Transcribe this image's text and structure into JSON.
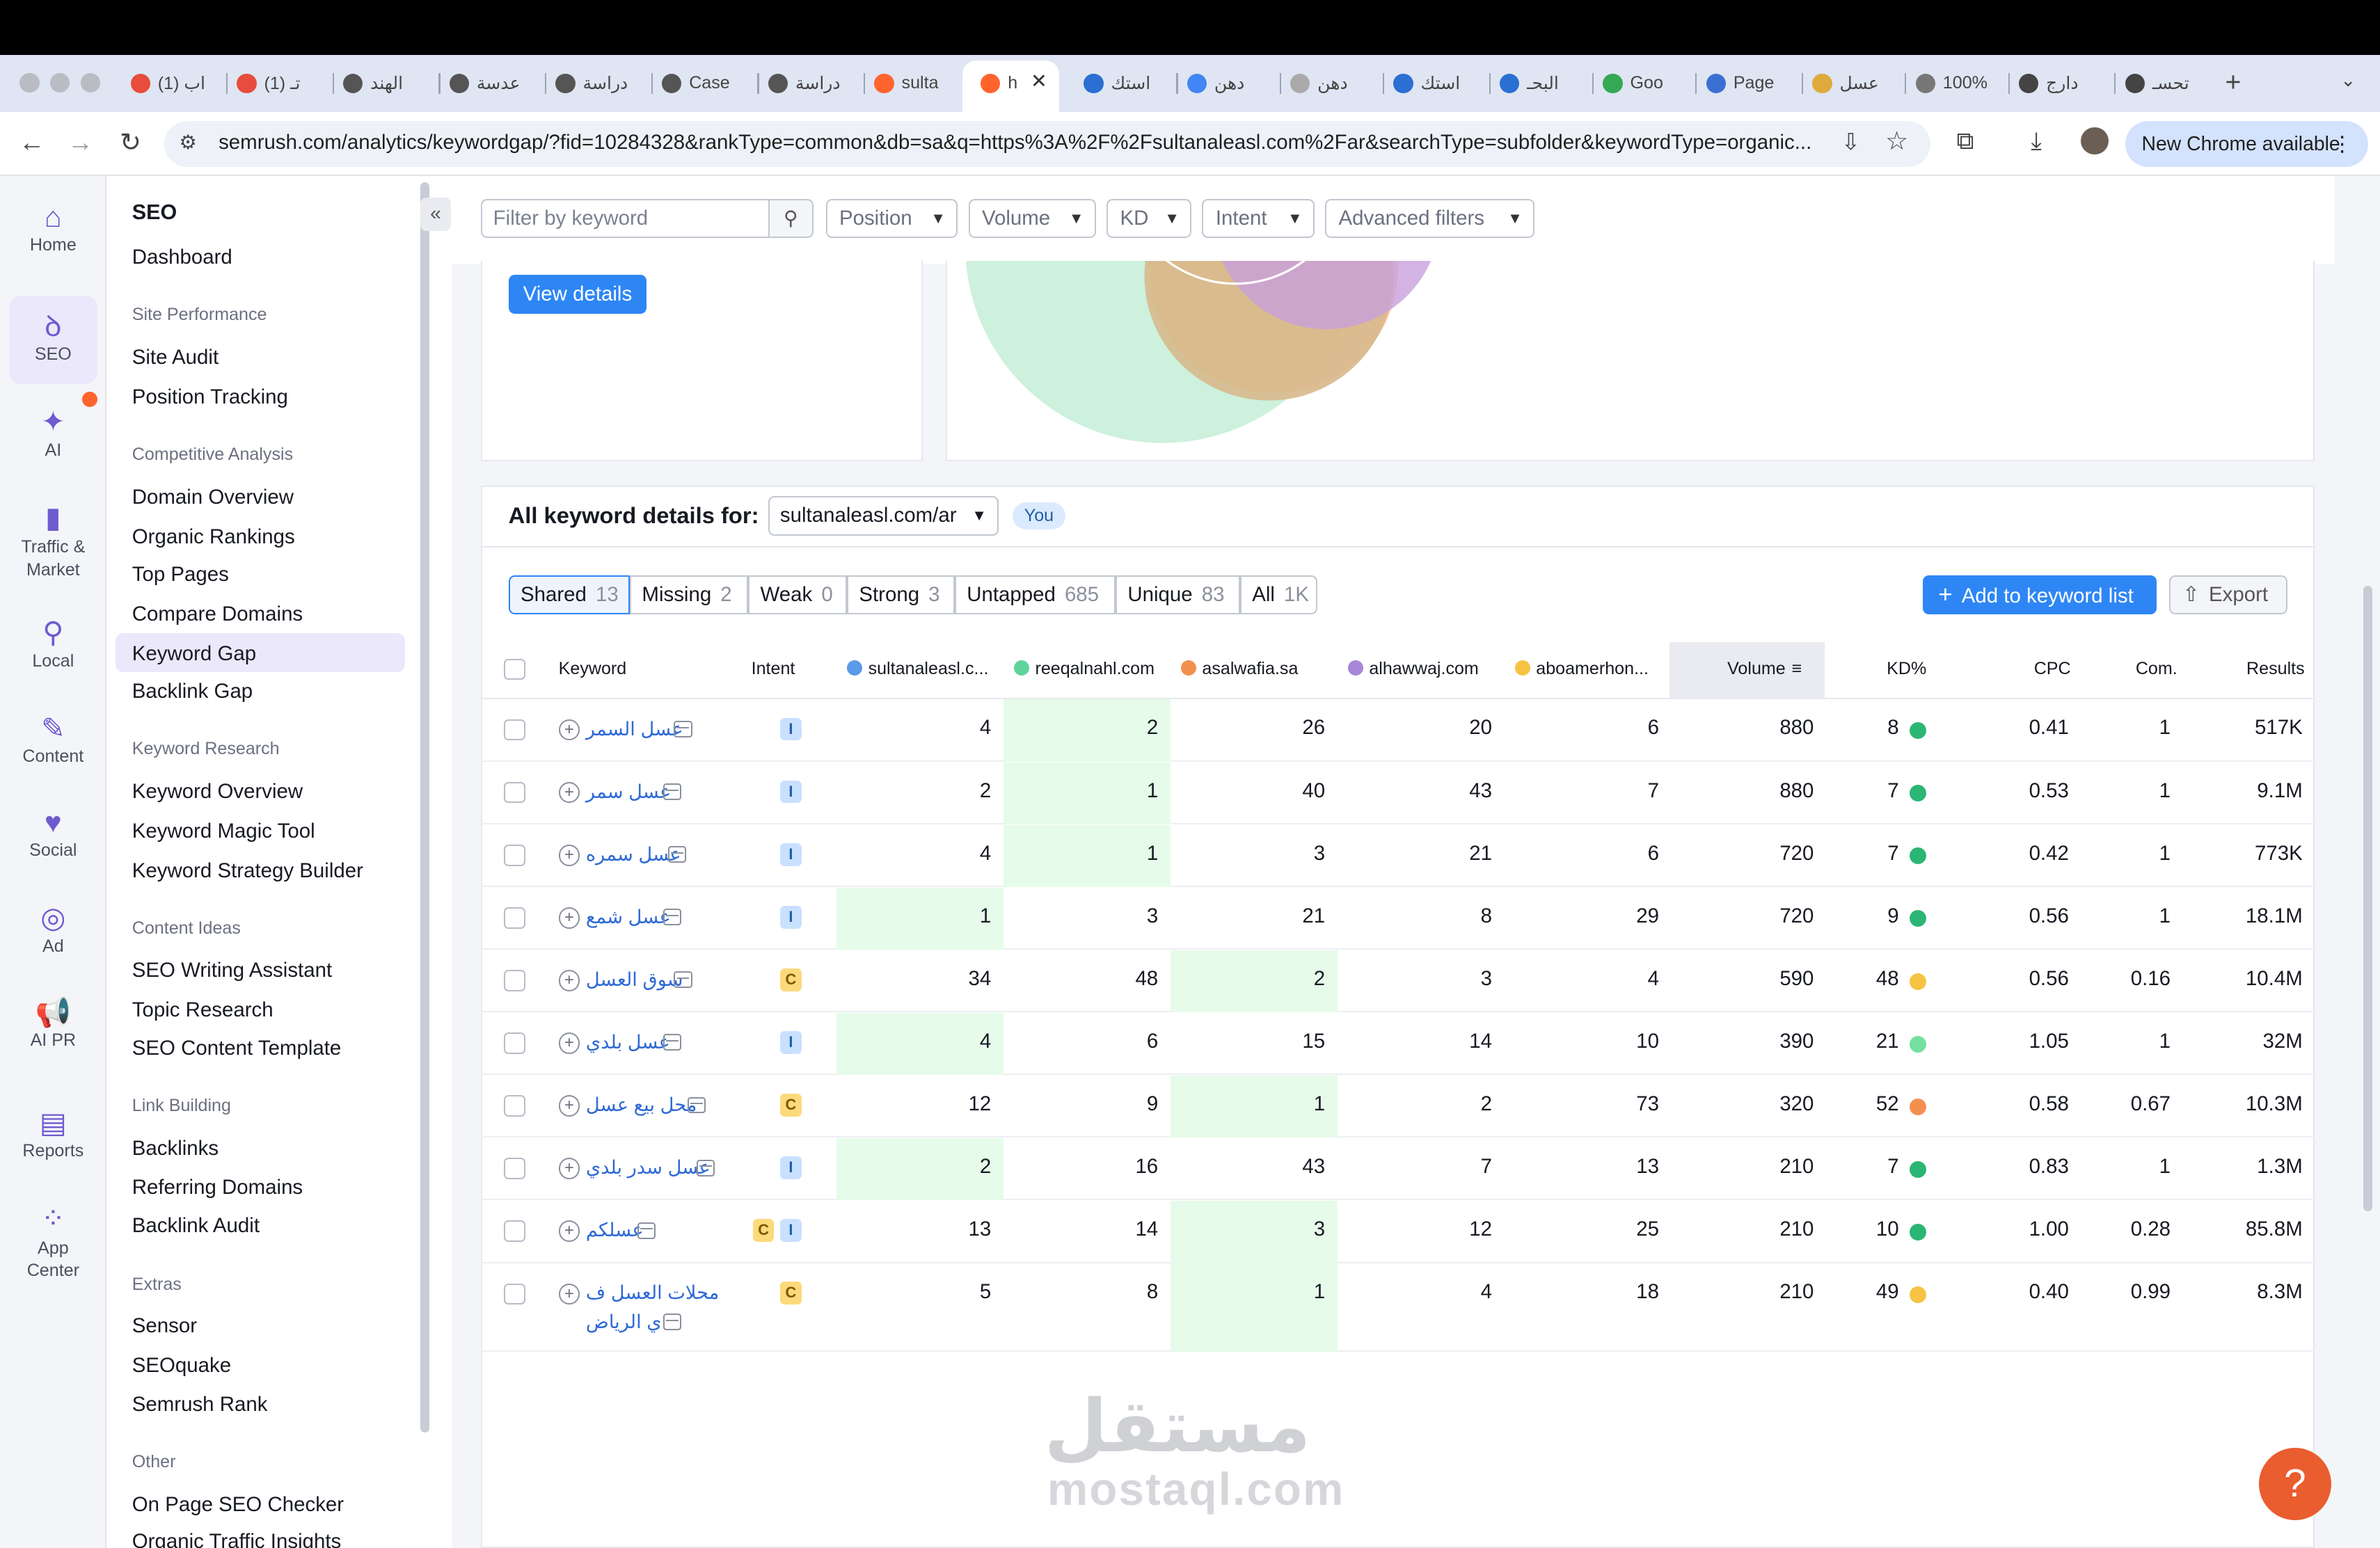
{
  "browser": {
    "tabs": [
      "(1) اب",
      "(1) تـ",
      "الهند",
      "عدسة",
      "دراسة",
      "Case",
      "دراسة",
      "sulta",
      "h",
      "استك",
      "دهن",
      "دهن",
      "استك",
      "البحـ",
      "Goo",
      "Page",
      "عسل",
      "100%",
      "دارج",
      "تحسـ"
    ],
    "url": "semrush.com/analytics/keywordgap/?fid=10284328&rankType=common&db=sa&q=https%3A%2F%2Fsultanaleasl.com%2Far&searchType=subfolder&keywordType=organic...",
    "new_chrome": "New Chrome available"
  },
  "rail": {
    "home": "Home",
    "seo": "SEO",
    "ai": "AI",
    "traffic": "Traffic &\nMarket",
    "local": "Local",
    "content": "Content",
    "social": "Social",
    "ad": "Ad",
    "aipr": "AI PR",
    "reports": "Reports",
    "appcenter": "App\nCenter"
  },
  "nav": {
    "title": "SEO",
    "dashboard": "Dashboard",
    "g1": "Site Performance",
    "site_audit": "Site Audit",
    "position_tracking": "Position Tracking",
    "g2": "Competitive Analysis",
    "domain_overview": "Domain Overview",
    "organic_rankings": "Organic Rankings",
    "top_pages": "Top Pages",
    "compare_domains": "Compare Domains",
    "keyword_gap": "Keyword Gap",
    "backlink_gap": "Backlink Gap",
    "g3": "Keyword Research",
    "keyword_overview": "Keyword Overview",
    "keyword_magic": "Keyword Magic Tool",
    "keyword_strategy": "Keyword Strategy Builder",
    "g4": "Content Ideas",
    "seo_writing": "SEO Writing Assistant",
    "topic_research": "Topic Research",
    "seo_content_template": "SEO Content Template",
    "g5": "Link Building",
    "backlinks": "Backlinks",
    "referring_domains": "Referring Domains",
    "backlink_audit": "Backlink Audit",
    "g6": "Extras",
    "sensor": "Sensor",
    "seoquake": "SEOquake",
    "semrush_rank": "Semrush Rank",
    "g7": "Other",
    "on_page": "On Page SEO Checker",
    "organic_traffic": "Organic Traffic Insights"
  },
  "filters": {
    "keyword_placeholder": "Filter by keyword",
    "position": "Position",
    "volume": "Volume",
    "kd": "KD",
    "intent": "Intent",
    "advanced": "Advanced filters"
  },
  "view_details": "View details",
  "details": {
    "title": "All keyword details for:",
    "domain": "sultanaleasl.com/ar",
    "you": "You"
  },
  "segments": [
    {
      "label": "Shared",
      "count": "13"
    },
    {
      "label": "Missing",
      "count": "2"
    },
    {
      "label": "Weak",
      "count": "0"
    },
    {
      "label": "Strong",
      "count": "3"
    },
    {
      "label": "Untapped",
      "count": "685"
    },
    {
      "label": "Unique",
      "count": "83"
    },
    {
      "label": "All",
      "count": "1K"
    }
  ],
  "buttons": {
    "add_keyword": "Add to keyword list",
    "export": "Export"
  },
  "columns": {
    "keyword": "Keyword",
    "intent": "Intent",
    "d1": "sultanaleasl.c...",
    "d2": "reeqalnahl.com",
    "d3": "asalwafia.sa",
    "d4": "alhawwaj.com",
    "d5": "aboamerhon...",
    "volume": "Volume",
    "kd": "KD%",
    "cpc": "CPC",
    "com": "Com.",
    "results": "Results"
  },
  "colors": {
    "d1": "#5b9ae8",
    "d2": "#5fd39a",
    "d3": "#f3904f",
    "d4": "#a886d8",
    "d5": "#f6c343",
    "accent": "#2e86f5"
  },
  "rows": [
    {
      "keyword": "عسل السمر",
      "intent": [
        "I"
      ],
      "d1": "4",
      "d2": "2",
      "d3": "26",
      "d4": "20",
      "d5": "6",
      "volume": "880",
      "kd": "8",
      "kdcolor": "#2bb673",
      "cpc": "0.41",
      "com": "1",
      "results": "517K",
      "best": 1
    },
    {
      "keyword": "عسل سمر",
      "intent": [
        "I"
      ],
      "d1": "2",
      "d2": "1",
      "d3": "40",
      "d4": "43",
      "d5": "7",
      "volume": "880",
      "kd": "7",
      "kdcolor": "#2bb673",
      "cpc": "0.53",
      "com": "1",
      "results": "9.1M",
      "best": 1
    },
    {
      "keyword": "عسل سمره",
      "intent": [
        "I"
      ],
      "d1": "4",
      "d2": "1",
      "d3": "3",
      "d4": "21",
      "d5": "6",
      "volume": "720",
      "kd": "7",
      "kdcolor": "#2bb673",
      "cpc": "0.42",
      "com": "1",
      "results": "773K",
      "best": 1
    },
    {
      "keyword": "عسل شمع",
      "intent": [
        "I"
      ],
      "d1": "1",
      "d2": "3",
      "d3": "21",
      "d4": "8",
      "d5": "29",
      "volume": "720",
      "kd": "9",
      "kdcolor": "#2bb673",
      "cpc": "0.56",
      "com": "1",
      "results": "18.1M",
      "best": 0
    },
    {
      "keyword": "سوق العسل",
      "intent": [
        "C"
      ],
      "d1": "34",
      "d2": "48",
      "d3": "2",
      "d4": "3",
      "d5": "4",
      "volume": "590",
      "kd": "48",
      "kdcolor": "#f6c343",
      "cpc": "0.56",
      "com": "0.16",
      "results": "10.4M",
      "best": 2
    },
    {
      "keyword": "عسل بلدي",
      "intent": [
        "I"
      ],
      "d1": "4",
      "d2": "6",
      "d3": "15",
      "d4": "14",
      "d5": "10",
      "volume": "390",
      "kd": "21",
      "kdcolor": "#74e0a0",
      "cpc": "1.05",
      "com": "1",
      "results": "32M",
      "best": 0
    },
    {
      "keyword": "محل بيع عسل",
      "intent": [
        "C"
      ],
      "d1": "12",
      "d2": "9",
      "d3": "1",
      "d4": "2",
      "d5": "73",
      "volume": "320",
      "kd": "52",
      "kdcolor": "#f3904f",
      "cpc": "0.58",
      "com": "0.67",
      "results": "10.3M",
      "best": 2
    },
    {
      "keyword": "عسل سدر بلدي",
      "intent": [
        "I"
      ],
      "d1": "2",
      "d2": "16",
      "d3": "43",
      "d4": "7",
      "d5": "13",
      "volume": "210",
      "kd": "7",
      "kdcolor": "#2bb673",
      "cpc": "0.83",
      "com": "1",
      "results": "1.3M",
      "best": 0
    },
    {
      "keyword": "عسلكم",
      "intent": [
        "C",
        "I"
      ],
      "d1": "13",
      "d2": "14",
      "d3": "3",
      "d4": "12",
      "d5": "25",
      "volume": "210",
      "kd": "10",
      "kdcolor": "#2bb673",
      "cpc": "1.00",
      "com": "0.28",
      "results": "85.8M",
      "best": 2
    },
    {
      "keyword": "محلات العسل ف",
      "keyword2": "ي الرياض",
      "intent": [
        "C"
      ],
      "d1": "5",
      "d2": "8",
      "d3": "1",
      "d4": "4",
      "d5": "18",
      "volume": "210",
      "kd": "49",
      "kdcolor": "#f6c343",
      "cpc": "0.40",
      "com": "0.99",
      "results": "8.3M",
      "best": 2
    }
  ],
  "watermark": {
    "ar": "مستقل",
    "en": "mostaql.com"
  },
  "help": "?"
}
